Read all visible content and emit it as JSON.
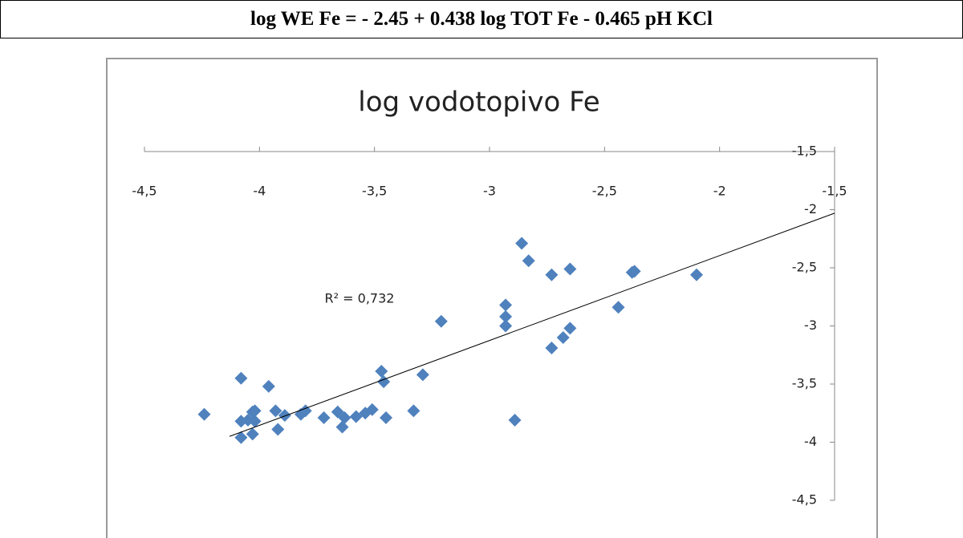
{
  "header": {
    "equation": "log WE Fe = - 2.45 + 0.438 log TOT Fe - 0.465 pH KCl"
  },
  "chart_data": {
    "type": "scatter",
    "title": "log vodotopivo Fe",
    "color": "#4f81bd",
    "annotation": "R² = 0,732",
    "x": [
      -4.24,
      -4.08,
      -4.08,
      -4.08,
      -4.05,
      -4.03,
      -4.02,
      -4.02,
      -4.03,
      -3.96,
      -3.93,
      -3.92,
      -3.89,
      -3.82,
      -3.8,
      -3.72,
      -3.66,
      -3.63,
      -3.64,
      -3.58,
      -3.54,
      -3.51,
      -3.47,
      -3.46,
      -3.45,
      -3.33,
      -3.29,
      -3.21,
      -2.93,
      -2.93,
      -2.93,
      -2.89,
      -2.86,
      -2.83,
      -2.73,
      -2.73,
      -2.68,
      -2.65,
      -2.65,
      -2.44,
      -2.38,
      -2.37,
      -2.1
    ],
    "values": [
      -3.76,
      -3.45,
      -3.96,
      -3.82,
      -3.81,
      -3.74,
      -3.73,
      -3.82,
      -3.93,
      -3.52,
      -3.73,
      -3.89,
      -3.77,
      -3.76,
      -3.73,
      -3.79,
      -3.74,
      -3.79,
      -3.87,
      -3.78,
      -3.75,
      -3.72,
      -3.39,
      -3.48,
      -3.79,
      -3.73,
      -3.42,
      -2.96,
      -2.82,
      -2.92,
      -3.0,
      -3.81,
      -2.29,
      -2.44,
      -2.56,
      -3.19,
      -3.1,
      -3.02,
      -2.51,
      -2.84,
      -2.54,
      -2.53,
      -2.56
    ],
    "trendline": {
      "x": [
        -4.13,
        -1.5
      ],
      "values": [
        -3.95,
        -2.03
      ],
      "color": "#000000"
    },
    "xlim": [
      -4.5,
      -1.5
    ],
    "xticks": [
      {
        "value": -4.5,
        "label": "-4,5"
      },
      -4,
      {
        "value": -3.5,
        "label": "-3,5"
      },
      -3,
      {
        "value": -2.5,
        "label": "-2,5"
      },
      -2,
      {
        "value": -1.5,
        "label": "-1,5"
      }
    ],
    "ylim": [
      -4.5,
      -1.5
    ],
    "yticks": [
      {
        "value": -1.5,
        "label": "-1,5"
      },
      -2,
      {
        "value": -2.5,
        "label": "-2,5"
      },
      -3,
      {
        "value": -3.5,
        "label": "-3,5"
      },
      -4,
      {
        "value": -4.5,
        "label": "-4,5"
      }
    ]
  }
}
